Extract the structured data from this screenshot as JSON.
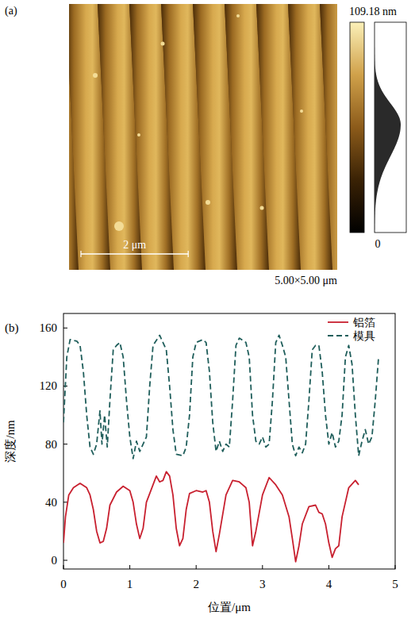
{
  "chart_data": [
    {
      "type": "image",
      "title": "(a)",
      "extent": 5,
      "extent_label": "5.00×5.00 μm",
      "scale_bar": 2,
      "scale_bar_label": "2 μm",
      "colorbar_range": [
        0,
        109.18
      ],
      "colorbar_ticks": [
        0,
        {
          "value": 109.18,
          "label": "109.18 nm"
        }
      ]
    },
    {
      "type": "line",
      "title": "(b)",
      "x_label": "位置/μm",
      "y_label": "深度/nm",
      "xlim": [
        0,
        5
      ],
      "xticks": [
        0,
        1,
        2,
        3,
        4,
        5
      ],
      "ylim": [
        -6,
        170
      ],
      "yticks": [
        0,
        40,
        80,
        120,
        160
      ],
      "legend": "upper right",
      "series": [
        {
          "name": "铝箔",
          "color": "#c8202f",
          "line_style": "solid",
          "x": [
            0,
            0.03,
            0.08,
            0.15,
            0.25,
            0.35,
            0.4,
            0.45,
            0.5,
            0.55,
            0.6,
            0.65,
            0.7,
            0.8,
            0.9,
            1.0,
            1.05,
            1.1,
            1.15,
            1.2,
            1.25,
            1.35,
            1.4,
            1.45,
            1.5,
            1.55,
            1.6,
            1.65,
            1.7,
            1.75,
            1.8,
            1.85,
            1.9,
            2.0,
            2.1,
            2.15,
            2.2,
            2.25,
            2.3,
            2.35,
            2.45,
            2.55,
            2.65,
            2.7,
            2.75,
            2.8,
            2.85,
            2.9,
            3.0,
            3.1,
            3.2,
            3.3,
            3.4,
            3.45,
            3.5,
            3.55,
            3.6,
            3.7,
            3.8,
            3.85,
            3.9,
            3.95,
            4.0,
            4.05,
            4.1,
            4.15,
            4.2,
            4.3,
            4.4,
            4.45
          ],
          "values": [
            12,
            30,
            45,
            50,
            53,
            50,
            45,
            35,
            20,
            12,
            13,
            22,
            38,
            47,
            51,
            48,
            40,
            25,
            15,
            22,
            40,
            52,
            58,
            54,
            55,
            61,
            58,
            45,
            22,
            10,
            15,
            35,
            46,
            48,
            47,
            48,
            40,
            20,
            6,
            18,
            45,
            55,
            54,
            52,
            50,
            40,
            10,
            20,
            45,
            57,
            52,
            45,
            30,
            15,
            -1,
            10,
            25,
            37,
            38,
            33,
            32,
            25,
            12,
            2,
            8,
            10,
            30,
            50,
            55,
            52
          ]
        },
        {
          "name": "模具",
          "color": "#1f5e5b",
          "line_style": "dashed",
          "x": [
            0,
            0.05,
            0.1,
            0.2,
            0.25,
            0.3,
            0.35,
            0.4,
            0.45,
            0.5,
            0.55,
            0.58,
            0.62,
            0.66,
            0.7,
            0.75,
            0.8,
            0.85,
            0.9,
            0.95,
            1.0,
            1.05,
            1.1,
            1.15,
            1.2,
            1.25,
            1.3,
            1.35,
            1.45,
            1.5,
            1.55,
            1.6,
            1.65,
            1.7,
            1.8,
            1.85,
            1.9,
            1.95,
            2.0,
            2.1,
            2.15,
            2.2,
            2.25,
            2.3,
            2.35,
            2.4,
            2.45,
            2.5,
            2.55,
            2.6,
            2.65,
            2.75,
            2.8,
            2.85,
            2.9,
            2.95,
            3.0,
            3.05,
            3.1,
            3.15,
            3.2,
            3.25,
            3.3,
            3.35,
            3.4,
            3.45,
            3.5,
            3.55,
            3.6,
            3.65,
            3.7,
            3.75,
            3.8,
            3.85,
            3.9,
            3.95,
            4.0,
            4.05,
            4.1,
            4.15,
            4.2,
            4.25,
            4.3,
            4.35,
            4.4,
            4.45,
            4.5,
            4.55,
            4.6,
            4.65,
            4.7,
            4.75
          ],
          "values": [
            95,
            140,
            152,
            151,
            148,
            130,
            100,
            78,
            73,
            80,
            103,
            80,
            100,
            78,
            110,
            145,
            148,
            150,
            140,
            110,
            85,
            70,
            82,
            75,
            80,
            85,
            120,
            148,
            155,
            150,
            145,
            120,
            90,
            73,
            72,
            78,
            100,
            140,
            150,
            152,
            150,
            130,
            95,
            75,
            82,
            75,
            80,
            78,
            110,
            148,
            153,
            150,
            140,
            100,
            82,
            80,
            85,
            78,
            80,
            110,
            150,
            155,
            148,
            140,
            110,
            80,
            72,
            78,
            74,
            80,
            110,
            145,
            148,
            148,
            130,
            100,
            80,
            88,
            78,
            82,
            100,
            140,
            148,
            135,
            100,
            72,
            82,
            90,
            80,
            85,
            110,
            140
          ]
        }
      ]
    }
  ]
}
